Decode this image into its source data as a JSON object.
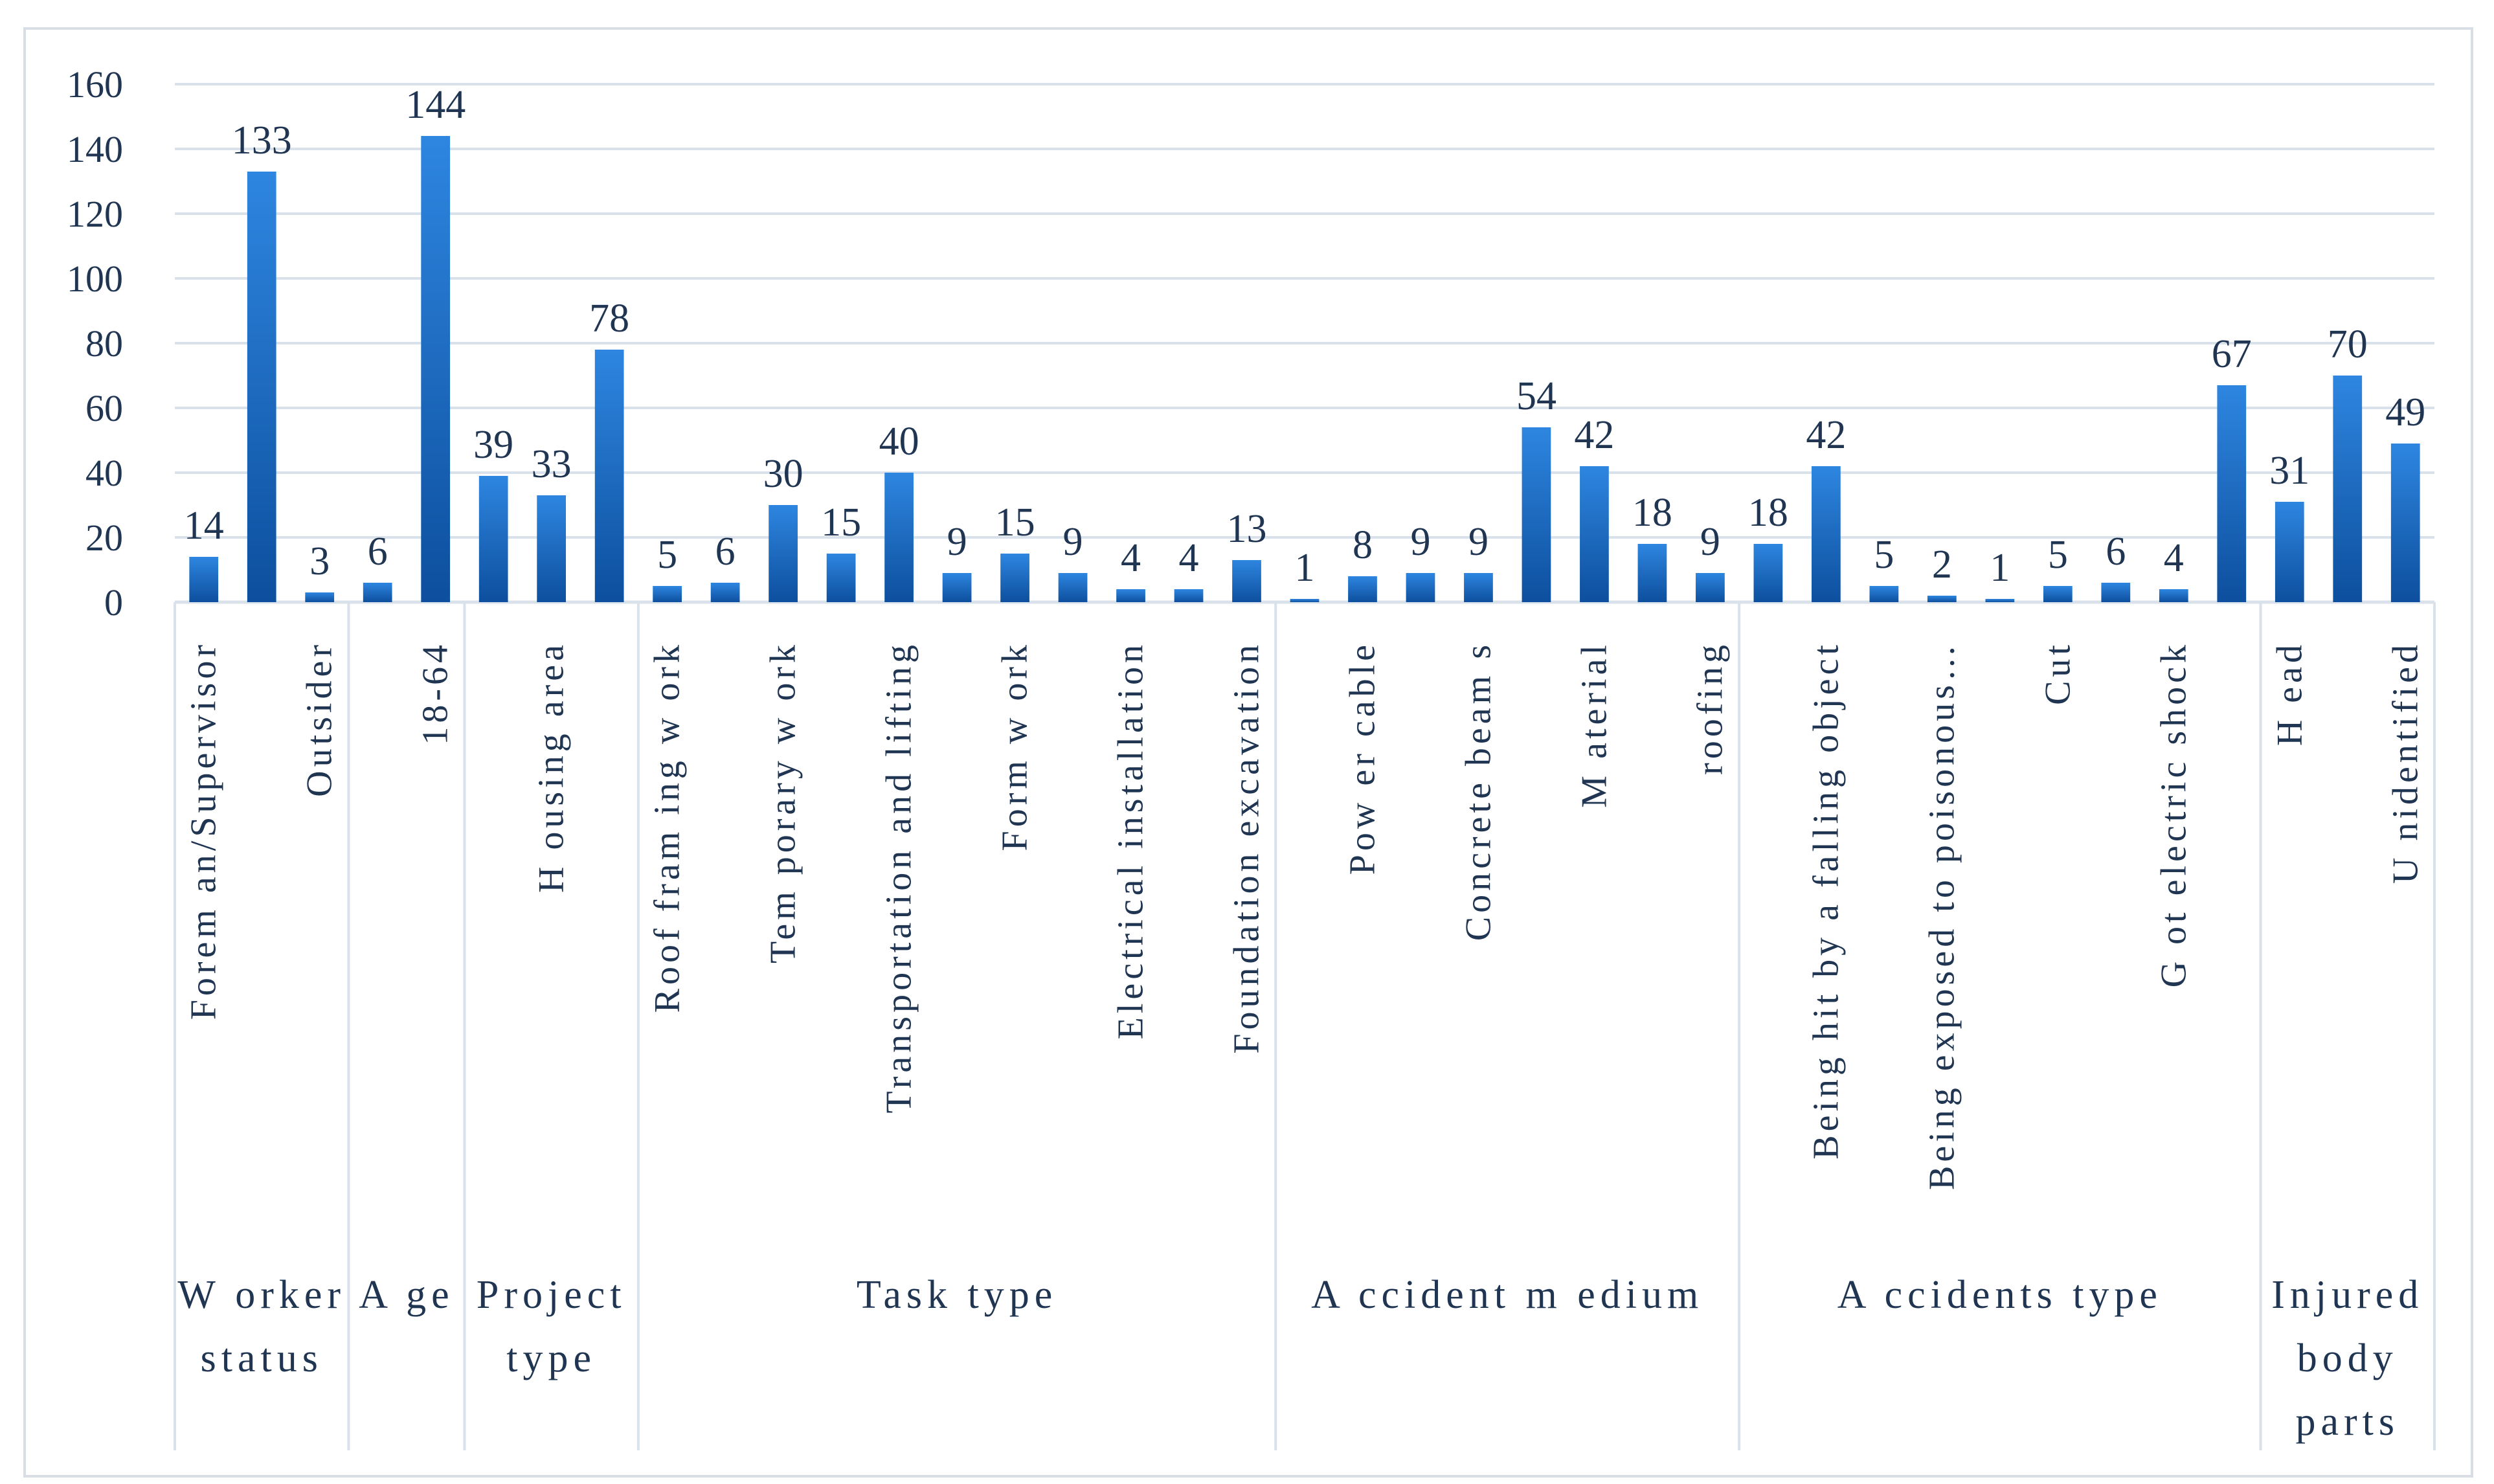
{
  "chart_data": {
    "type": "bar",
    "title": "",
    "xlabel": "",
    "ylabel": "",
    "ylim": [
      0,
      160
    ],
    "yticks": [
      0,
      20,
      40,
      60,
      80,
      100,
      120,
      140,
      160
    ],
    "grid": true,
    "legend": "none",
    "bar_color": "#1565c0",
    "bar_color_light": "#2e86e0",
    "text_color": "#1f3552",
    "grid_color": "#d9e1ea",
    "categories": [
      "Forem an/Supervisor",
      "",
      "Outsider",
      "",
      "18-64",
      "",
      "H ousing area",
      "",
      "Roof fram ing w ork",
      "",
      "Tem porary w ork",
      "",
      "Transportation and lifting",
      "",
      "Form  w ork",
      "",
      "Electrical installation",
      "",
      "Foundation excavation",
      "",
      "Pow er cable",
      "",
      "Concrete beam s",
      "",
      "M aterial",
      "",
      "roofing",
      "",
      "Being hit by a falling object",
      "",
      "Being exposed to poisonous…",
      "",
      "Cut",
      "",
      "G ot electric shock",
      "",
      "H ead",
      "",
      "U nidentified"
    ],
    "values": [
      14,
      133,
      3,
      6,
      144,
      39,
      33,
      78,
      5,
      6,
      30,
      15,
      40,
      9,
      15,
      9,
      4,
      4,
      13,
      1,
      8,
      9,
      9,
      54,
      42,
      18,
      9,
      18,
      42,
      5,
      2,
      1,
      5,
      6,
      4,
      67,
      31,
      70,
      49
    ],
    "groups": [
      {
        "name": "W orker status",
        "lines": [
          "W orker",
          "status"
        ],
        "count": 3
      },
      {
        "name": "A ge",
        "lines": [
          "A ge"
        ],
        "count": 2
      },
      {
        "name": "Project type",
        "lines": [
          "Project",
          "type"
        ],
        "count": 3
      },
      {
        "name": "Task type",
        "lines": [
          "Task type"
        ],
        "count": 11
      },
      {
        "name": "A ccident m edium",
        "lines": [
          "A ccident m edium"
        ],
        "count": 8
      },
      {
        "name": "A ccidents type",
        "lines": [
          "A ccidents type"
        ],
        "count": 9
      },
      {
        "name": "Injured body parts",
        "lines": [
          "Injured",
          "body",
          "parts"
        ],
        "count": 3
      }
    ]
  }
}
